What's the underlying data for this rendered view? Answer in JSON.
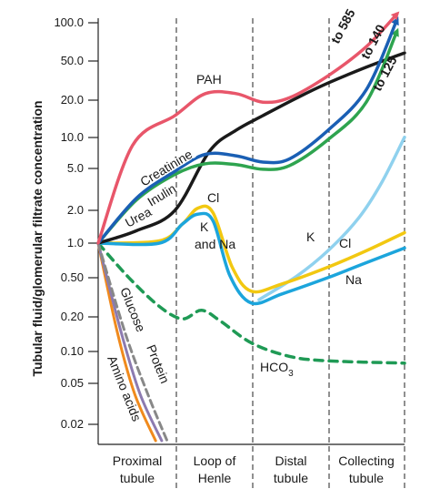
{
  "chart_data": {
    "type": "line",
    "ylabel": "Tubular fluid/glomerular filtrate concentration",
    "xlabel": "",
    "yscale": "log",
    "ylim": [
      0.015,
      110
    ],
    "y_ticks": [
      "100.0",
      "50.0",
      "20.0",
      "10.0",
      "5.0",
      "2.0",
      "1.0",
      "0.50",
      "0.20",
      "0.10",
      "0.05",
      "0.02"
    ],
    "segments": [
      {
        "line1": "Proximal",
        "line2": "tubule"
      },
      {
        "line1": "Loop of",
        "line2": "Henle"
      },
      {
        "line1": "Distal",
        "line2": "tubule"
      },
      {
        "line1": "Collecting",
        "line2": "tubule"
      }
    ],
    "series": [
      {
        "name": "PAH",
        "color": "#e8566a",
        "dashed": false,
        "arrow_label": "to 585",
        "points": [
          [
            0,
            1
          ],
          [
            0.45,
            8
          ],
          [
            1,
            15
          ],
          [
            1.4,
            24
          ],
          [
            1.8,
            24
          ],
          [
            2.15,
            20
          ],
          [
            2.5,
            22
          ],
          [
            3,
            35
          ],
          [
            3.5,
            65
          ],
          [
            3.9,
            130
          ]
        ]
      },
      {
        "name": "Creatinine",
        "color": "#1a5fb4",
        "dashed": false,
        "arrow_label": "to 140",
        "points": [
          [
            0,
            1
          ],
          [
            0.5,
            2.6
          ],
          [
            1,
            4.6
          ],
          [
            1.4,
            6.6
          ],
          [
            1.8,
            6.4
          ],
          [
            2.15,
            5.6
          ],
          [
            2.5,
            6
          ],
          [
            3,
            11
          ],
          [
            3.5,
            26
          ],
          [
            3.9,
            115
          ]
        ]
      },
      {
        "name": "Inulin",
        "color": "#2ea44f",
        "dashed": false,
        "arrow_label": "to 125",
        "points": [
          [
            0,
            1
          ],
          [
            0.5,
            2.5
          ],
          [
            1,
            4.3
          ],
          [
            1.4,
            5.4
          ],
          [
            1.8,
            5.3
          ],
          [
            2.15,
            4.8
          ],
          [
            2.5,
            5.2
          ],
          [
            3,
            9
          ],
          [
            3.5,
            20
          ],
          [
            3.9,
            90
          ]
        ]
      },
      {
        "name": "Urea",
        "color": "#1a1a1a",
        "dashed": false,
        "arrow_label": "",
        "points": [
          [
            0,
            1
          ],
          [
            0.5,
            1.3
          ],
          [
            1,
            2
          ],
          [
            1.45,
            7
          ],
          [
            1.8,
            11
          ],
          [
            2.15,
            15
          ],
          [
            2.6,
            22
          ],
          [
            3,
            30
          ],
          [
            3.5,
            42
          ],
          [
            4,
            57
          ]
        ]
      },
      {
        "name": "Cl",
        "color": "#f2c811",
        "dashed": false,
        "arrow_label": "",
        "points": [
          [
            0,
            1
          ],
          [
            0.8,
            1.05
          ],
          [
            1.1,
            1.5
          ],
          [
            1.3,
            2.1
          ],
          [
            1.5,
            1.9
          ],
          [
            1.75,
            0.6
          ],
          [
            2,
            0.36
          ],
          [
            2.4,
            0.42
          ],
          [
            3,
            0.6
          ],
          [
            3.5,
            0.85
          ],
          [
            4,
            1.25
          ]
        ]
      },
      {
        "name": "Na",
        "color": "#1ca5dc",
        "dashed": false,
        "arrow_label": "",
        "points": [
          [
            0,
            1
          ],
          [
            0.8,
            1
          ],
          [
            1.1,
            1.5
          ],
          [
            1.3,
            1.85
          ],
          [
            1.5,
            1.6
          ],
          [
            1.72,
            0.5
          ],
          [
            2,
            0.28
          ],
          [
            2.4,
            0.34
          ],
          [
            3,
            0.48
          ],
          [
            3.5,
            0.66
          ],
          [
            4,
            0.9
          ]
        ]
      },
      {
        "name": "K",
        "color": "#8fd1ee",
        "dashed": false,
        "arrow_label": "",
        "points": [
          [
            2.1,
            0.3
          ],
          [
            2.6,
            0.5
          ],
          [
            3,
            0.85
          ],
          [
            3.4,
            1.7
          ],
          [
            3.7,
            3.6
          ],
          [
            4,
            9.5
          ]
        ]
      },
      {
        "name": "HCO3",
        "color": "#1f9a55",
        "dashed": true,
        "arrow_label": "",
        "points": [
          [
            0,
            1
          ],
          [
            0.4,
            0.48
          ],
          [
            0.8,
            0.26
          ],
          [
            1.1,
            0.2
          ],
          [
            1.35,
            0.24
          ],
          [
            1.6,
            0.19
          ],
          [
            2,
            0.12
          ],
          [
            2.5,
            0.09
          ],
          [
            3,
            0.082
          ],
          [
            4,
            0.078
          ]
        ]
      },
      {
        "name": "Glucose",
        "color": "#888888",
        "dashed": true,
        "arrow_label": "",
        "points": [
          [
            0,
            1
          ],
          [
            0.35,
            0.15
          ],
          [
            0.65,
            0.04
          ],
          [
            0.9,
            0.015
          ]
        ]
      },
      {
        "name": "Protein",
        "color": "#8c7ab0",
        "dashed": false,
        "arrow_label": "",
        "points": [
          [
            0,
            1
          ],
          [
            0.3,
            0.15
          ],
          [
            0.55,
            0.04
          ],
          [
            0.83,
            0.015
          ]
        ]
      },
      {
        "name": "Amino acids",
        "color": "#f08a1d",
        "dashed": false,
        "arrow_label": "",
        "points": [
          [
            0,
            1
          ],
          [
            0.25,
            0.15
          ],
          [
            0.48,
            0.04
          ],
          [
            0.75,
            0.015
          ]
        ]
      }
    ],
    "annotations": [
      "PAH",
      "Creatinine",
      "Inulin",
      "Urea",
      "Cl",
      "K",
      "and Na",
      "K",
      "Cl",
      "Na",
      "HCO",
      "3",
      "Glucose",
      "Protein",
      "Amino acids"
    ]
  }
}
